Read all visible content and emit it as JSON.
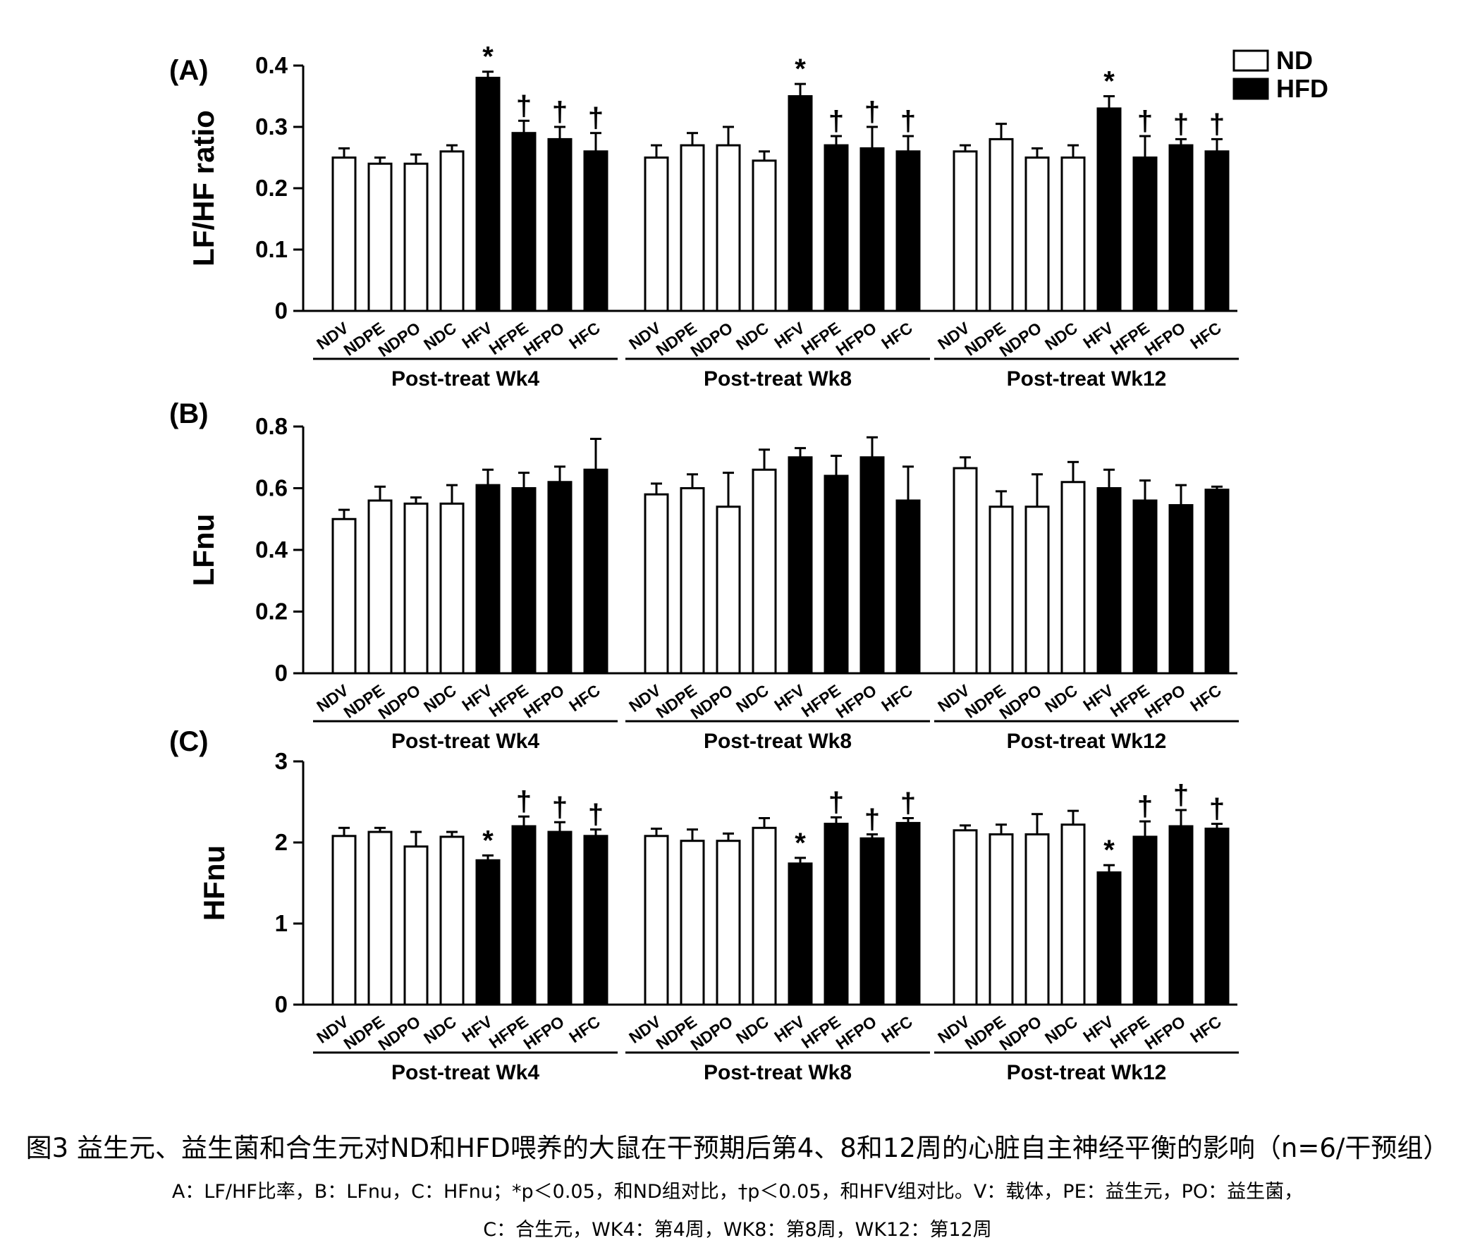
{
  "chart_data": [
    {
      "type": "bar",
      "panel_label": "(A)",
      "ylabel": "LF/HF ratio",
      "ylim": [
        0,
        0.4
      ],
      "yticks": [
        0,
        0.1,
        0.2,
        0.3,
        0.4
      ],
      "ytick_labels": [
        "0",
        "0.1",
        "0.2",
        "0.3",
        "0.4"
      ],
      "groups": [
        {
          "label": "Post-treat Wk4",
          "categories": [
            "NDV",
            "NDPE",
            "NDPO",
            "NDC",
            "HFV",
            "HFPE",
            "HFPO",
            "HFC"
          ],
          "values": [
            0.25,
            0.24,
            0.24,
            0.26,
            0.38,
            0.29,
            0.28,
            0.26
          ],
          "errors": [
            0.015,
            0.01,
            0.015,
            0.01,
            0.01,
            0.02,
            0.02,
            0.03
          ],
          "markers": [
            "",
            "",
            "",
            "",
            "*",
            "†",
            "†",
            "†"
          ]
        },
        {
          "label": "Post-treat Wk8",
          "categories": [
            "NDV",
            "NDPE",
            "NDPO",
            "NDC",
            "HFV",
            "HFPE",
            "HFPO",
            "HFC"
          ],
          "values": [
            0.25,
            0.27,
            0.27,
            0.245,
            0.35,
            0.27,
            0.265,
            0.26
          ],
          "errors": [
            0.02,
            0.02,
            0.03,
            0.015,
            0.02,
            0.015,
            0.035,
            0.025
          ],
          "markers": [
            "",
            "",
            "",
            "",
            "*",
            "†",
            "†",
            "†"
          ]
        },
        {
          "label": "Post-treat Wk12",
          "categories": [
            "NDV",
            "NDPE",
            "NDPO",
            "NDC",
            "HFV",
            "HFPE",
            "HFPO",
            "HFC"
          ],
          "values": [
            0.26,
            0.28,
            0.25,
            0.25,
            0.33,
            0.25,
            0.27,
            0.26
          ],
          "errors": [
            0.01,
            0.025,
            0.015,
            0.02,
            0.02,
            0.035,
            0.01,
            0.02
          ],
          "markers": [
            "",
            "",
            "",
            "",
            "*",
            "†",
            "†",
            "†"
          ]
        }
      ]
    },
    {
      "type": "bar",
      "panel_label": "(B)",
      "ylabel": "LFnu",
      "ylim": [
        0,
        0.8
      ],
      "yticks": [
        0,
        0.2,
        0.4,
        0.6,
        0.8
      ],
      "ytick_labels": [
        "0",
        "0.2",
        "0.4",
        "0.6",
        "0.8"
      ],
      "groups": [
        {
          "label": "Post-treat Wk4",
          "categories": [
            "NDV",
            "NDPE",
            "NDPO",
            "NDC",
            "HFV",
            "HFPE",
            "HFPO",
            "HFC"
          ],
          "values": [
            0.5,
            0.56,
            0.55,
            0.55,
            0.61,
            0.6,
            0.62,
            0.66
          ],
          "errors": [
            0.03,
            0.045,
            0.02,
            0.06,
            0.05,
            0.05,
            0.05,
            0.1
          ],
          "markers": [
            "",
            "",
            "",
            "",
            "",
            "",
            "",
            ""
          ]
        },
        {
          "label": "Post-treat Wk8",
          "categories": [
            "NDV",
            "NDPE",
            "NDPO",
            "NDC",
            "HFV",
            "HFPE",
            "HFPO",
            "HFC"
          ],
          "values": [
            0.58,
            0.6,
            0.54,
            0.66,
            0.7,
            0.64,
            0.7,
            0.56
          ],
          "errors": [
            0.035,
            0.045,
            0.11,
            0.065,
            0.03,
            0.065,
            0.065,
            0.11
          ],
          "markers": [
            "",
            "",
            "",
            "",
            "",
            "",
            "",
            ""
          ]
        },
        {
          "label": "Post-treat Wk12",
          "categories": [
            "NDV",
            "NDPE",
            "NDPO",
            "NDC",
            "HFV",
            "HFPE",
            "HFPO",
            "HFC"
          ],
          "values": [
            0.665,
            0.54,
            0.54,
            0.62,
            0.6,
            0.56,
            0.545,
            0.595
          ],
          "errors": [
            0.035,
            0.05,
            0.105,
            0.065,
            0.06,
            0.065,
            0.065,
            0.01
          ],
          "markers": [
            "",
            "",
            "",
            "",
            "",
            "",
            "",
            ""
          ]
        }
      ]
    },
    {
      "type": "bar",
      "panel_label": "(C)",
      "ylabel": "HFnu",
      "ylim": [
        0,
        3
      ],
      "yticks": [
        0,
        1,
        2,
        3
      ],
      "ytick_labels": [
        "0",
        "1",
        "2",
        "3"
      ],
      "groups": [
        {
          "label": "Post-treat Wk4",
          "categories": [
            "NDV",
            "NDPE",
            "NDPO",
            "NDC",
            "HFV",
            "HFPE",
            "HFPO",
            "HFC"
          ],
          "values": [
            2.08,
            2.13,
            1.95,
            2.07,
            1.78,
            2.2,
            2.13,
            2.08
          ],
          "errors": [
            0.1,
            0.05,
            0.18,
            0.06,
            0.06,
            0.12,
            0.12,
            0.08
          ],
          "markers": [
            "",
            "",
            "",
            "",
            "*",
            "†",
            "†",
            "†"
          ]
        },
        {
          "label": "Post-treat Wk8",
          "categories": [
            "NDV",
            "NDPE",
            "NDPO",
            "NDC",
            "HFV",
            "HFPE",
            "HFPO",
            "HFC"
          ],
          "values": [
            2.08,
            2.02,
            2.02,
            2.18,
            1.74,
            2.23,
            2.05,
            2.24
          ],
          "errors": [
            0.09,
            0.14,
            0.09,
            0.12,
            0.07,
            0.08,
            0.05,
            0.06
          ],
          "markers": [
            "",
            "",
            "",
            "",
            "*",
            "†",
            "†",
            "†"
          ]
        },
        {
          "label": "Post-treat Wk12",
          "categories": [
            "NDV",
            "NDPE",
            "NDPO",
            "NDC",
            "HFV",
            "HFPE",
            "HFPO",
            "HFC"
          ],
          "values": [
            2.15,
            2.1,
            2.1,
            2.22,
            1.63,
            2.07,
            2.2,
            2.17
          ],
          "errors": [
            0.06,
            0.12,
            0.25,
            0.17,
            0.09,
            0.19,
            0.2,
            0.06
          ],
          "markers": [
            "",
            "",
            "",
            "",
            "*",
            "†",
            "†",
            "†"
          ]
        }
      ]
    }
  ],
  "legend": [
    {
      "label": "ND",
      "fill": "#ffffff"
    },
    {
      "label": "HFD",
      "fill": "#000000"
    }
  ],
  "caption": {
    "title": "图3 益生元、益生菌和合生元对ND和HFD喂养的大鼠在干预期后第4、8和12周的心脏自主神经平衡的影响（n=6/干预组）",
    "line1": "A：LF/HF比率，B：LFnu，C：HFnu；*p＜0.05，和ND组对比，†p＜0.05，和HFV组对比。V：载体，PE：益生元，PO：益生菌，",
    "line2": "C：合生元，WK4：第4周，WK8：第8周，WK12：第12周"
  }
}
